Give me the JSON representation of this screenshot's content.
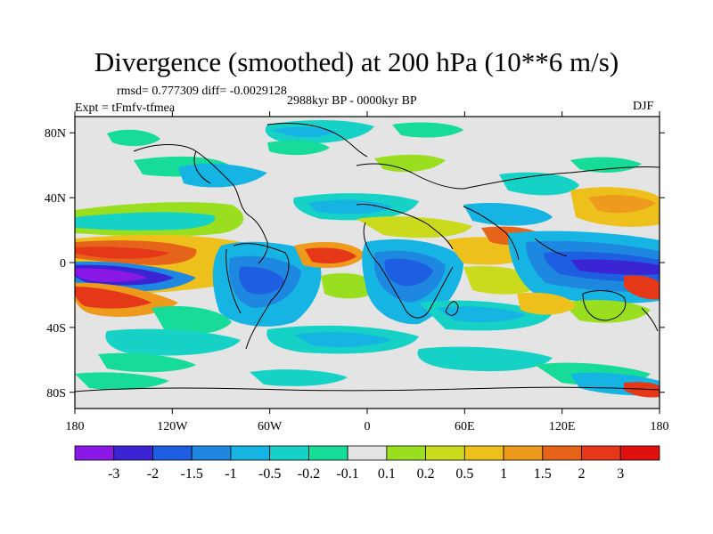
{
  "title": "Divergence (smoothed) at 200 hPa (10**6 m/s)",
  "stats": "rmsd= 0.777309 diff= -0.0029128",
  "experiment": "Expt = tFmfv-tfmea",
  "period": "2988kyr BP - 0000kyr BP",
  "season": "DJF",
  "axes": {
    "lon_ticks": [
      {
        "lon": -180,
        "label": "180"
      },
      {
        "lon": -120,
        "label": "120W"
      },
      {
        "lon": -60,
        "label": "60W"
      },
      {
        "lon": 0,
        "label": "0"
      },
      {
        "lon": 60,
        "label": "60E"
      },
      {
        "lon": 120,
        "label": "120E"
      },
      {
        "lon": 180,
        "label": "180"
      }
    ],
    "lat_ticks": [
      {
        "lat": 80,
        "label": "80N"
      },
      {
        "lat": 40,
        "label": "40N"
      },
      {
        "lat": 0,
        "label": "0"
      },
      {
        "lat": -40,
        "label": "40S"
      },
      {
        "lat": -80,
        "label": "80S"
      }
    ]
  },
  "colorbar": {
    "labels": [
      "-3",
      "-2",
      "-1.5",
      "-1",
      "-0.5",
      "-0.2",
      "-0.1",
      "0.1",
      "0.2",
      "0.5",
      "1",
      "1.5",
      "2",
      "3"
    ],
    "colors": [
      "#8a18e6",
      "#3a24d4",
      "#1e5ee0",
      "#1e88e0",
      "#16b4e2",
      "#16d2c6",
      "#16dc98",
      "#e4e4e4",
      "#9ade20",
      "#cada1c",
      "#eec01c",
      "#ee9a1c",
      "#e6641a",
      "#e43818",
      "#e01010"
    ]
  }
}
